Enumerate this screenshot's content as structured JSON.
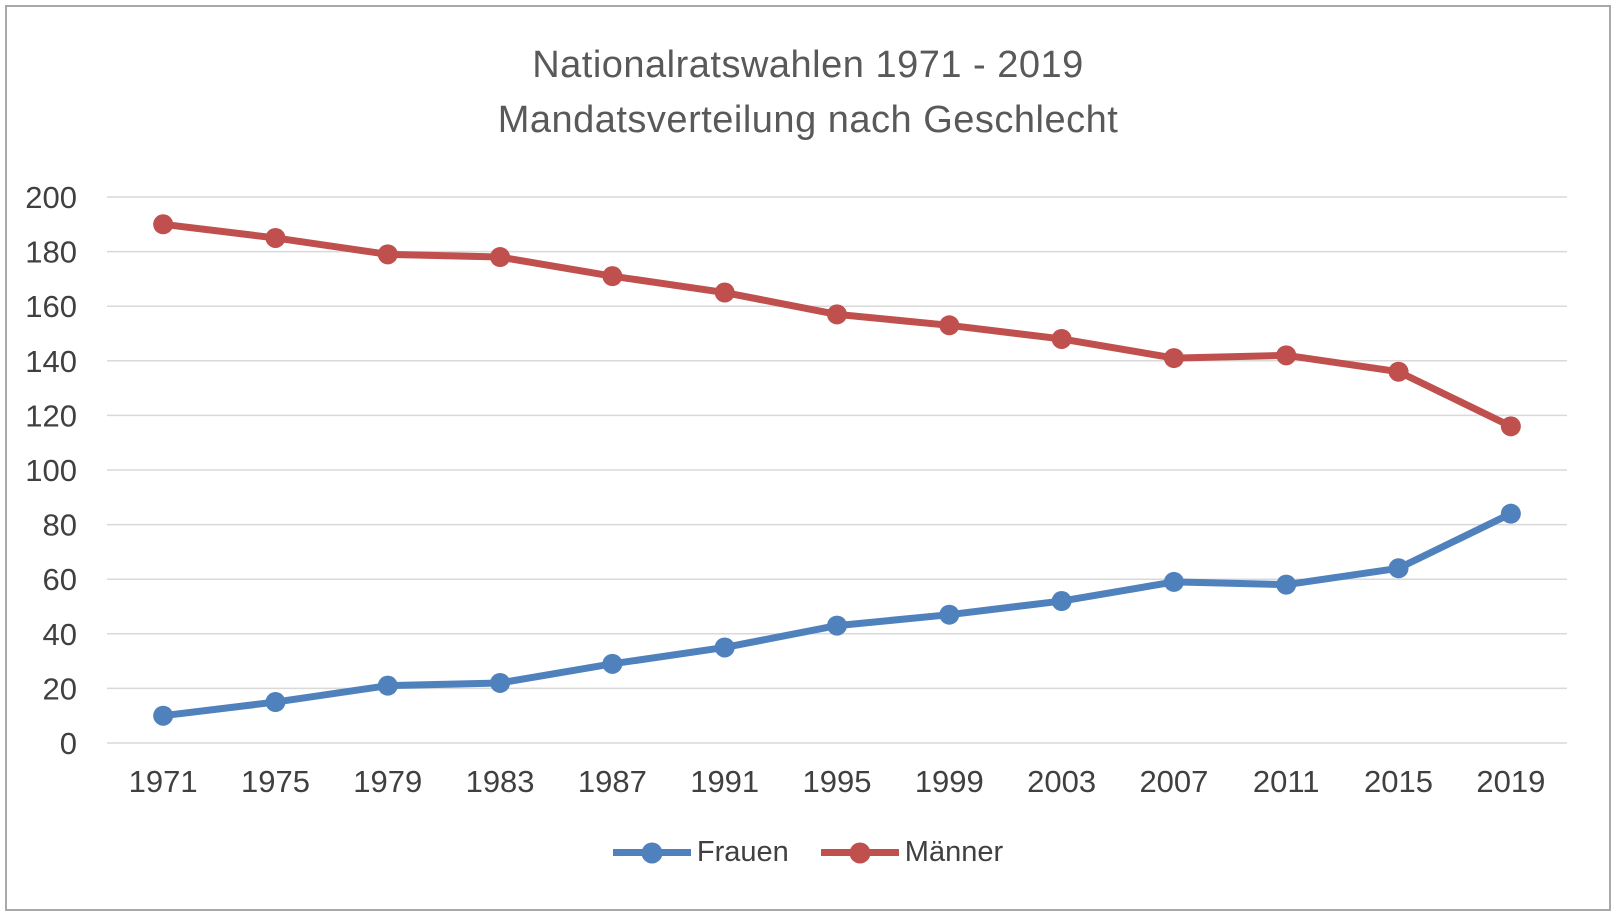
{
  "window": {
    "background": "#ffffff",
    "border_color": "#a9a9a9"
  },
  "colors": {
    "gridline": "#d9d9d9",
    "tick_text": "#404040",
    "title_text": "#595959",
    "frauen_blue": "#4F81BD",
    "maenner_red": "#C0504D"
  },
  "chart_data": {
    "type": "line",
    "title_line1": "Nationalratswahlen 1971 - 2019",
    "title_line2": "Mandatsverteilung nach Geschlecht",
    "categories": [
      "1971",
      "1975",
      "1979",
      "1983",
      "1987",
      "1991",
      "1995",
      "1999",
      "2003",
      "2007",
      "2011",
      "2015",
      "2019"
    ],
    "series": [
      {
        "name": "Frauen",
        "color": "#4F81BD",
        "values": [
          10,
          15,
          21,
          22,
          29,
          35,
          43,
          47,
          52,
          59,
          58,
          64,
          84
        ]
      },
      {
        "name": "Männer",
        "color": "#C0504D",
        "values": [
          190,
          185,
          179,
          178,
          171,
          165,
          157,
          153,
          148,
          141,
          142,
          136,
          116
        ]
      }
    ],
    "xlabel": "",
    "ylabel": "",
    "ylim": [
      0,
      200
    ],
    "yticks": [
      0,
      20,
      40,
      60,
      80,
      100,
      120,
      140,
      160,
      180,
      200
    ],
    "grid": true,
    "legend_position": "bottom",
    "marker": "circle"
  }
}
